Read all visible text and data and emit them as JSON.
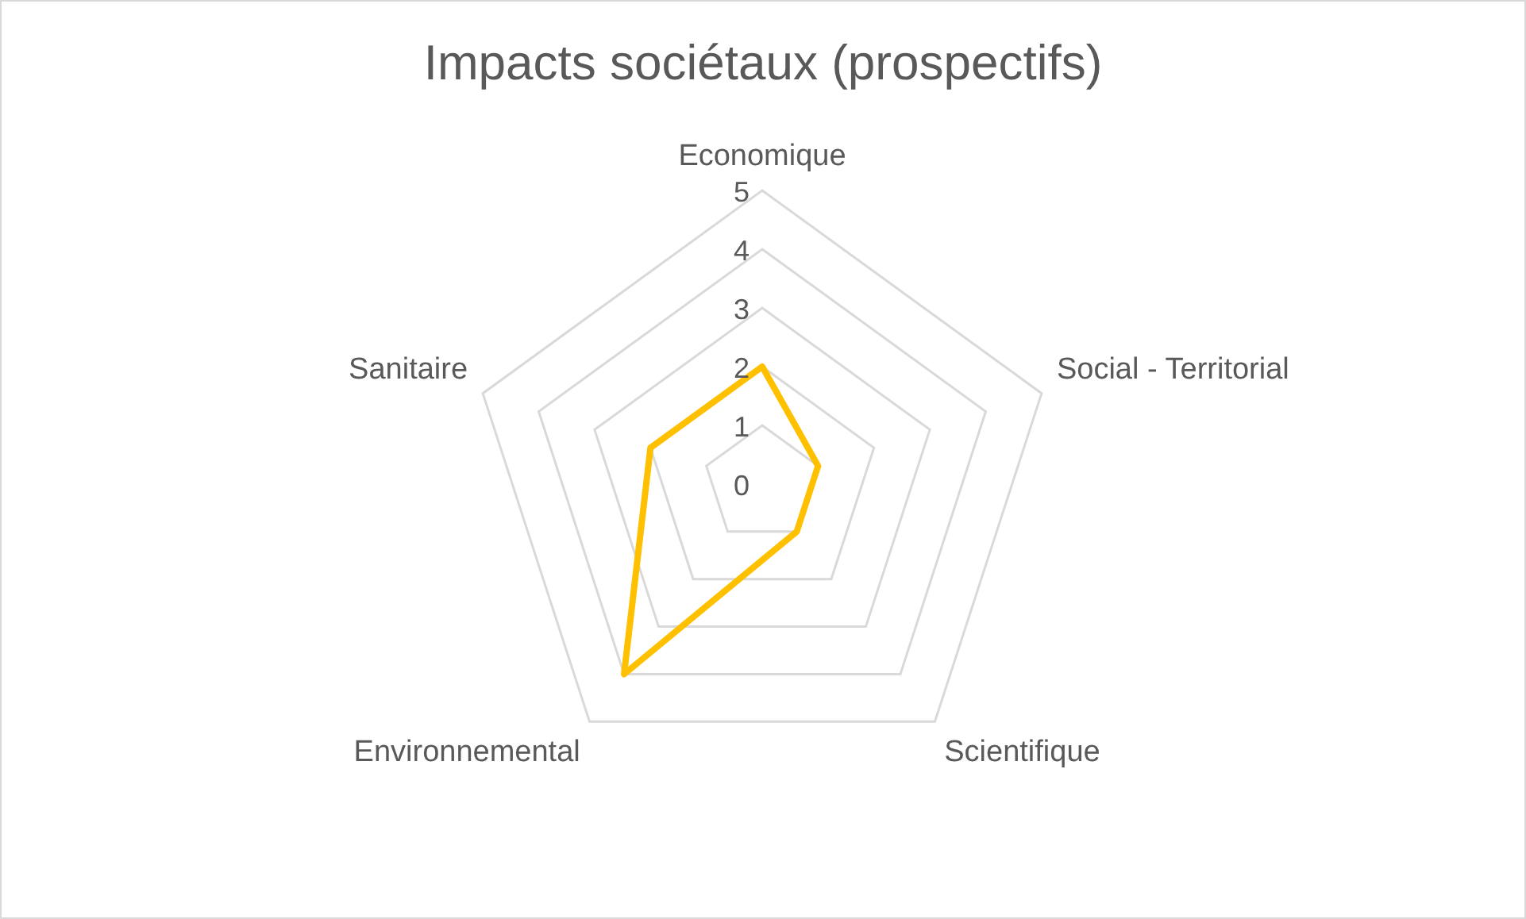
{
  "chart_data": {
    "type": "radar",
    "title": "Impacts sociétaux (prospectifs)",
    "categories": [
      "Economique",
      "Social - Territorial",
      "Scientifique",
      "Environnemental",
      "Sanitaire"
    ],
    "series": [
      {
        "color": "#ffc000",
        "values": [
          2,
          1,
          1,
          4,
          2
        ]
      }
    ],
    "ylim": [
      0,
      5
    ],
    "yticks": [
      0,
      1,
      2,
      3,
      4,
      5
    ],
    "grid": true,
    "legend": false,
    "marker": "none"
  }
}
